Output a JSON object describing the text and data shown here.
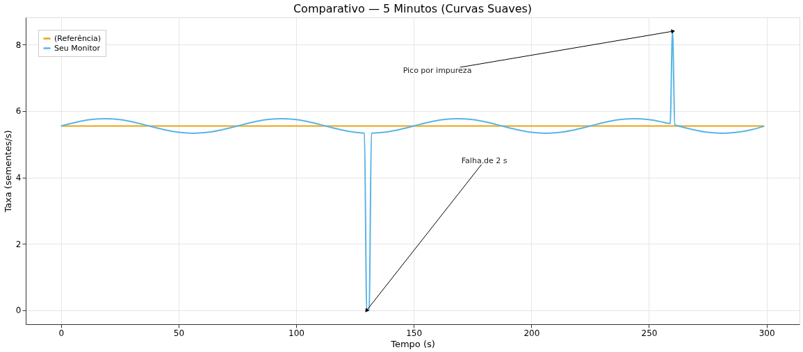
{
  "chart_data": {
    "type": "line",
    "title": "Comparativo — 5 Minutos (Curvas Suaves)",
    "xlabel": "Tempo (s)",
    "ylabel": "Taxa (sementes/s)",
    "xlim": [
      -15,
      314
    ],
    "ylim": [
      -0.42,
      8.82
    ],
    "xticks": [
      0,
      50,
      100,
      150,
      200,
      250,
      300
    ],
    "yticks": [
      0,
      2,
      4,
      6,
      8
    ],
    "grid": true,
    "legend": "top left",
    "marker": "none",
    "line_style": "solid",
    "series": [
      {
        "name": "(Referência)",
        "color": "#e8a317",
        "x": [
          0,
          299
        ],
        "values": [
          5.55,
          5.55
        ]
      },
      {
        "name": "Seu Monitor",
        "color": "#5ab4e5",
        "x": [
          0,
          6.25,
          12.5,
          18.75,
          25,
          31.25,
          37.5,
          43.75,
          50,
          56.25,
          62.5,
          68.75,
          75,
          81.25,
          87.5,
          93.75,
          100,
          106.25,
          112.5,
          118.75,
          125,
          129,
          130,
          131,
          132,
          137.5,
          143.75,
          150,
          156.25,
          162.5,
          168.75,
          175,
          181.25,
          187.5,
          193.75,
          200,
          206.25,
          212.5,
          218.75,
          225,
          231.25,
          237.5,
          243.75,
          250,
          256.25,
          259,
          260,
          261,
          262.5,
          268.75,
          275,
          281.25,
          287.5,
          293.75,
          299
        ],
        "values": [
          5.55,
          5.66,
          5.74,
          5.77,
          5.74,
          5.66,
          5.55,
          5.44,
          5.36,
          5.33,
          5.36,
          5.44,
          5.55,
          5.66,
          5.74,
          5.77,
          5.74,
          5.66,
          5.55,
          5.44,
          5.36,
          5.33,
          0,
          0,
          5.33,
          5.36,
          5.44,
          5.55,
          5.66,
          5.74,
          5.77,
          5.74,
          5.66,
          5.55,
          5.44,
          5.36,
          5.33,
          5.36,
          5.44,
          5.55,
          5.66,
          5.74,
          5.77,
          5.74,
          5.66,
          5.62,
          8.4,
          5.58,
          5.55,
          5.44,
          5.36,
          5.33,
          5.36,
          5.44,
          5.54
        ]
      }
    ],
    "annotations": [
      {
        "text": "Pico por impureza",
        "x": 260,
        "y": 8.4
      },
      {
        "text": "Falha de 2 s",
        "x": 130,
        "y": 0
      }
    ]
  }
}
